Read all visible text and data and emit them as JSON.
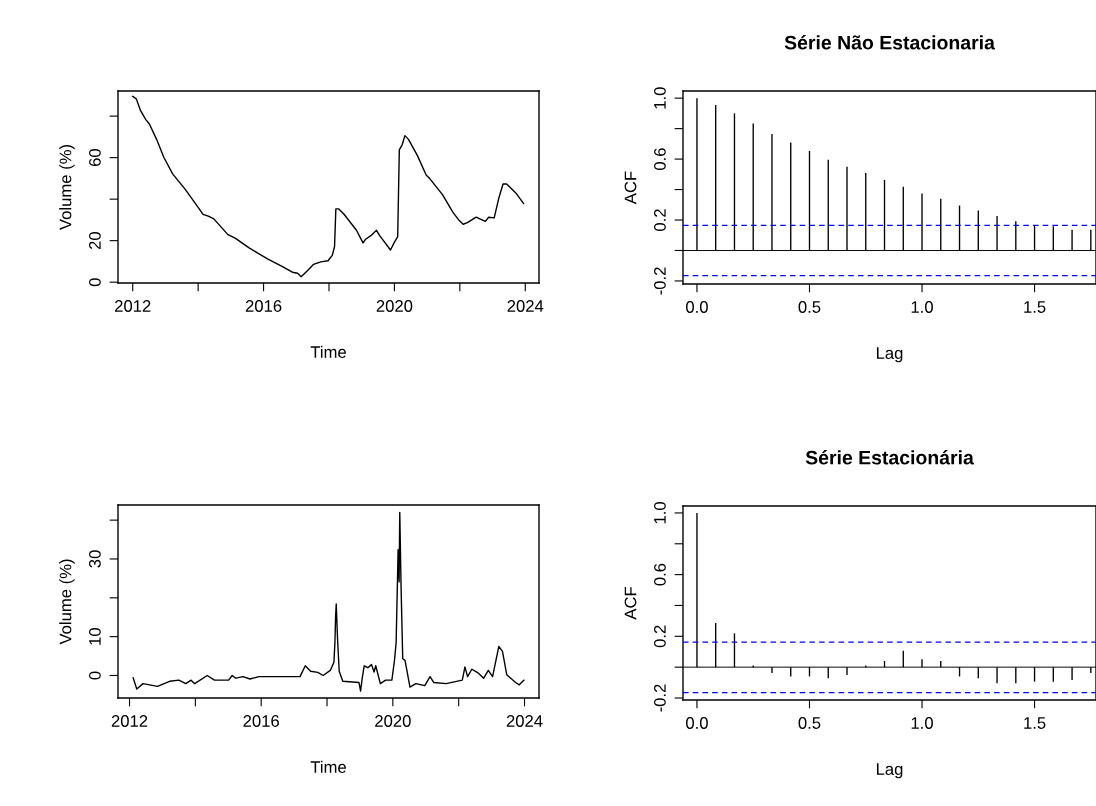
{
  "chart_data": [
    {
      "type": "line",
      "xlabel": "Time",
      "ylabel": "Volume (%)",
      "xlim": [
        2011.55,
        2024.42
      ],
      "ylim": [
        -0.4,
        92.1
      ],
      "xticks": [
        2012,
        {
          "value": 2014,
          "label": null
        },
        2016,
        {
          "value": 2018,
          "label": null
        },
        2020,
        {
          "value": 2022,
          "label": null
        },
        2024
      ],
      "yticks": [
        0,
        20,
        {
          "value": 40,
          "label": null
        },
        60,
        {
          "value": 80,
          "label": null
        }
      ],
      "grid": false,
      "legend": false,
      "line_style": "solid",
      "marker": "none",
      "series": [
        {
          "color": "#000000",
          "x": [
            2012.0,
            2012.11,
            2012.24,
            2012.4,
            2012.51,
            2012.73,
            2012.95,
            2013.22,
            2013.6,
            2013.88,
            2014.15,
            2014.31,
            2014.48,
            2014.91,
            2015.13,
            2015.57,
            2016.12,
            2016.55,
            2016.88,
            2017.04,
            2017.15,
            2017.37,
            2017.53,
            2017.75,
            2017.97,
            2018.1,
            2018.17,
            2018.21,
            2018.3,
            2018.46,
            2018.84,
            2019.04,
            2019.12,
            2019.28,
            2019.45,
            2019.55,
            2019.88,
            2019.99,
            2020.1,
            2020.15,
            2020.24,
            2020.32,
            2020.43,
            2020.7,
            2020.97,
            2021.08,
            2021.47,
            2021.79,
            2021.96,
            2022.1,
            2022.23,
            2022.5,
            2022.61,
            2022.78,
            2022.88,
            2023.05,
            2023.19,
            2023.32,
            2023.43,
            2023.71,
            2023.95
          ],
          "values": [
            89.5,
            88.3,
            82.6,
            78.3,
            76.2,
            68.8,
            60.2,
            52.2,
            44.8,
            38.7,
            32.7,
            31.8,
            30.5,
            22.9,
            21.2,
            16.4,
            11.2,
            7.7,
            4.8,
            4.3,
            2.6,
            6.0,
            8.6,
            9.8,
            10.3,
            12.9,
            17.2,
            35.3,
            35.3,
            32.7,
            25.0,
            18.9,
            20.7,
            22.4,
            25.0,
            22.4,
            15.5,
            18.9,
            21.9,
            63.7,
            66.3,
            70.6,
            68.8,
            61.1,
            51.6,
            49.9,
            42.2,
            33.6,
            30.1,
            27.9,
            28.7,
            31.3,
            30.5,
            29.3,
            31.3,
            31.0,
            40.4,
            47.3,
            47.3,
            43.0,
            37.9
          ]
        }
      ]
    },
    {
      "type": "bar",
      "title": "Série Não Estacionaria",
      "xlabel": "Lag",
      "ylabel": "ACF",
      "xlim": [
        -0.062,
        1.773
      ],
      "ylim": [
        -0.22,
        1.047
      ],
      "xticks": [
        {
          "value": 0,
          "label": "0.0"
        },
        0.5,
        {
          "value": 1,
          "label": "1.0"
        },
        1.5
      ],
      "yticks": [
        -0.2,
        {
          "value": 0,
          "label": null
        },
        0.2,
        {
          "value": 0.4,
          "label": null
        },
        0.6,
        {
          "value": 0.8,
          "label": null
        },
        {
          "value": 1,
          "label": "1.0"
        }
      ],
      "grid": false,
      "legend": false,
      "x": [
        0,
        0.0833,
        0.1667,
        0.25,
        0.3333,
        0.4167,
        0.5,
        0.5833,
        0.6667,
        0.75,
        0.8333,
        0.9167,
        1,
        1.0833,
        1.1667,
        1.25,
        1.3333,
        1.4167,
        1.5,
        1.5833,
        1.6667,
        1.75
      ],
      "series": [
        {
          "color": "#000000",
          "values": [
            1.0,
            0.955,
            0.9,
            0.834,
            0.765,
            0.709,
            0.653,
            0.595,
            0.55,
            0.508,
            0.463,
            0.418,
            0.374,
            0.34,
            0.295,
            0.262,
            0.226,
            0.192,
            0.163,
            0.159,
            0.136,
            0.136
          ]
        }
      ],
      "ref_lines": [
        {
          "axis": "y",
          "value": 0,
          "color": "#000000",
          "line_style": "solid"
        },
        {
          "axis": "y",
          "value": 0.165,
          "color": "#0000ff",
          "line_style": "dashed"
        },
        {
          "axis": "y",
          "value": -0.165,
          "color": "#0000ff",
          "line_style": "dashed"
        }
      ]
    },
    {
      "type": "line",
      "xlabel": "Time",
      "ylabel": "Volume (%)",
      "xlim": [
        2011.65,
        2024.44
      ],
      "ylim": [
        -5.8,
        43.9
      ],
      "xticks": [
        2012,
        {
          "value": 2014,
          "label": null
        },
        2016,
        {
          "value": 2018,
          "label": null
        },
        2020,
        {
          "value": 2022,
          "label": null
        },
        2024
      ],
      "yticks": [
        0,
        10,
        {
          "value": 20,
          "label": null
        },
        30,
        {
          "value": 40,
          "label": null
        }
      ],
      "grid": false,
      "legend": false,
      "line_style": "solid",
      "marker": "none",
      "series": [
        {
          "color": "#000000",
          "x": [
            2012.11,
            2012.22,
            2012.41,
            2012.85,
            2013.22,
            2013.5,
            2013.71,
            2013.87,
            2013.98,
            2014.36,
            2014.58,
            2015.01,
            2015.12,
            2015.23,
            2015.45,
            2015.66,
            2015.93,
            2017.18,
            2017.34,
            2017.5,
            2017.72,
            2017.88,
            2018.1,
            2018.21,
            2018.24,
            2018.26,
            2018.28,
            2018.32,
            2018.37,
            2018.48,
            2018.97,
            2019.02,
            2019.07,
            2019.13,
            2019.24,
            2019.35,
            2019.43,
            2019.48,
            2019.62,
            2019.78,
            2019.97,
            2020.05,
            2020.1,
            2020.16,
            2020.19,
            2020.21,
            2020.25,
            2020.3,
            2020.37,
            2020.52,
            2020.7,
            2020.97,
            2021.13,
            2021.24,
            2021.62,
            2022.11,
            2022.19,
            2022.27,
            2022.4,
            2022.6,
            2022.76,
            2022.9,
            2023.03,
            2023.22,
            2023.33,
            2023.46,
            2023.73,
            2023.84,
            2023.98
          ],
          "values": [
            -0.6,
            -3.5,
            -2.1,
            -2.8,
            -1.5,
            -1.2,
            -2.1,
            -1.2,
            -2.1,
            0,
            -1.2,
            -1.2,
            0,
            -0.7,
            -0.3,
            -0.9,
            -0.3,
            -0.3,
            2.5,
            1.1,
            0.8,
            0,
            1.3,
            3.4,
            8.5,
            14.9,
            18.4,
            9.4,
            1.1,
            -1.5,
            -1.8,
            -4.0,
            -0.7,
            2.5,
            2.0,
            2.8,
            0.9,
            2.5,
            -2.1,
            -1.2,
            -1.2,
            3.9,
            8.5,
            32.4,
            24.1,
            42.0,
            22.7,
            4.3,
            3.9,
            -3.0,
            -2.1,
            -2.6,
            -0.3,
            -1.8,
            -2.1,
            -1.2,
            2.2,
            -0.3,
            1.6,
            0.6,
            -0.7,
            1.3,
            -0.3,
            7.5,
            6.2,
            0.2,
            -1.8,
            -2.4,
            -1.2
          ]
        }
      ]
    },
    {
      "type": "bar",
      "title": "Série Estacionária",
      "xlabel": "Lag",
      "ylabel": "ACF",
      "xlim": [
        -0.062,
        1.773
      ],
      "ylim": [
        -0.213,
        1.045
      ],
      "xticks": [
        {
          "value": 0,
          "label": "0.0"
        },
        0.5,
        {
          "value": 1,
          "label": "1.0"
        },
        1.5
      ],
      "yticks": [
        -0.2,
        {
          "value": 0,
          "label": null
        },
        0.2,
        {
          "value": 0.4,
          "label": null
        },
        0.6,
        {
          "value": 0.8,
          "label": null
        },
        {
          "value": 1,
          "label": "1.0"
        }
      ],
      "grid": false,
      "legend": false,
      "x": [
        0,
        0.0833,
        0.1667,
        0.25,
        0.3333,
        0.4167,
        0.5,
        0.5833,
        0.6667,
        0.75,
        0.8333,
        0.9167,
        1,
        1.0833,
        1.1667,
        1.25,
        1.3333,
        1.4167,
        1.5,
        1.5833,
        1.6667,
        1.75
      ],
      "series": [
        {
          "color": "#000000",
          "values": [
            1.0,
            0.286,
            0.219,
            0.011,
            -0.038,
            -0.06,
            -0.06,
            -0.072,
            -0.051,
            0.011,
            0.04,
            0.107,
            0.051,
            0.04,
            -0.06,
            -0.072,
            -0.105,
            -0.105,
            -0.094,
            -0.094,
            -0.083,
            -0.038
          ]
        }
      ],
      "ref_lines": [
        {
          "axis": "y",
          "value": 0,
          "color": "#000000",
          "line_style": "solid"
        },
        {
          "axis": "y",
          "value": 0.162,
          "color": "#0000ff",
          "line_style": "dashed"
        },
        {
          "axis": "y",
          "value": -0.165,
          "color": "#0000ff",
          "line_style": "dashed"
        }
      ]
    }
  ]
}
